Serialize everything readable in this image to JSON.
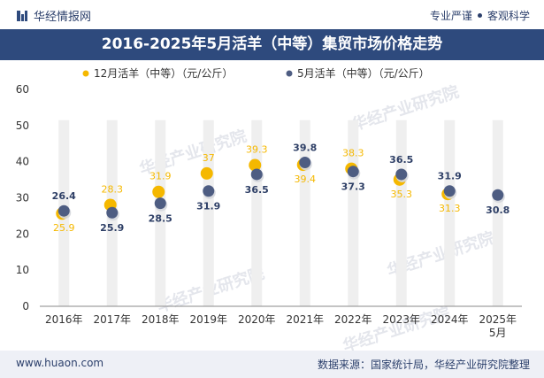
{
  "header": {
    "brand": "华经情报网",
    "tagline_left": "专业严谨",
    "tagline_right": "客观科学"
  },
  "title": "2016-2025年5月活羊（中等）集贸市场价格走势",
  "footer": {
    "website": "www.huaon.com",
    "source": "数据来源：国家统计局，华经产业研究院整理"
  },
  "watermark": "华经产业研究院",
  "colors": {
    "title_bg": "#2e4a7d",
    "series_dec": "#f5b800",
    "series_may": "#4e5d82",
    "label_may": "#2e3f66",
    "band": "#efefef"
  },
  "chart_data": {
    "type": "scatter",
    "categories": [
      "2016年",
      "2017年",
      "2018年",
      "2019年",
      "2020年",
      "2021年",
      "2022年",
      "2023年",
      "2024年",
      "2025年\n5月"
    ],
    "ylim": [
      0,
      60
    ],
    "yticks": [
      0,
      10,
      20,
      30,
      40,
      50,
      60
    ],
    "series": [
      {
        "name": "12月活羊（中等）（元/公斤）",
        "color": "#f5b800",
        "values": [
          25.9,
          28.3,
          31.9,
          37,
          39.3,
          39.4,
          38.3,
          35.3,
          31.3,
          null
        ]
      },
      {
        "name": "5月活羊（中等）（元/公斤）",
        "color": "#4e5d82",
        "values": [
          26.4,
          25.9,
          28.5,
          31.9,
          36.5,
          39.8,
          37.3,
          36.5,
          31.9,
          30.8
        ]
      }
    ],
    "legend_position": "top"
  }
}
